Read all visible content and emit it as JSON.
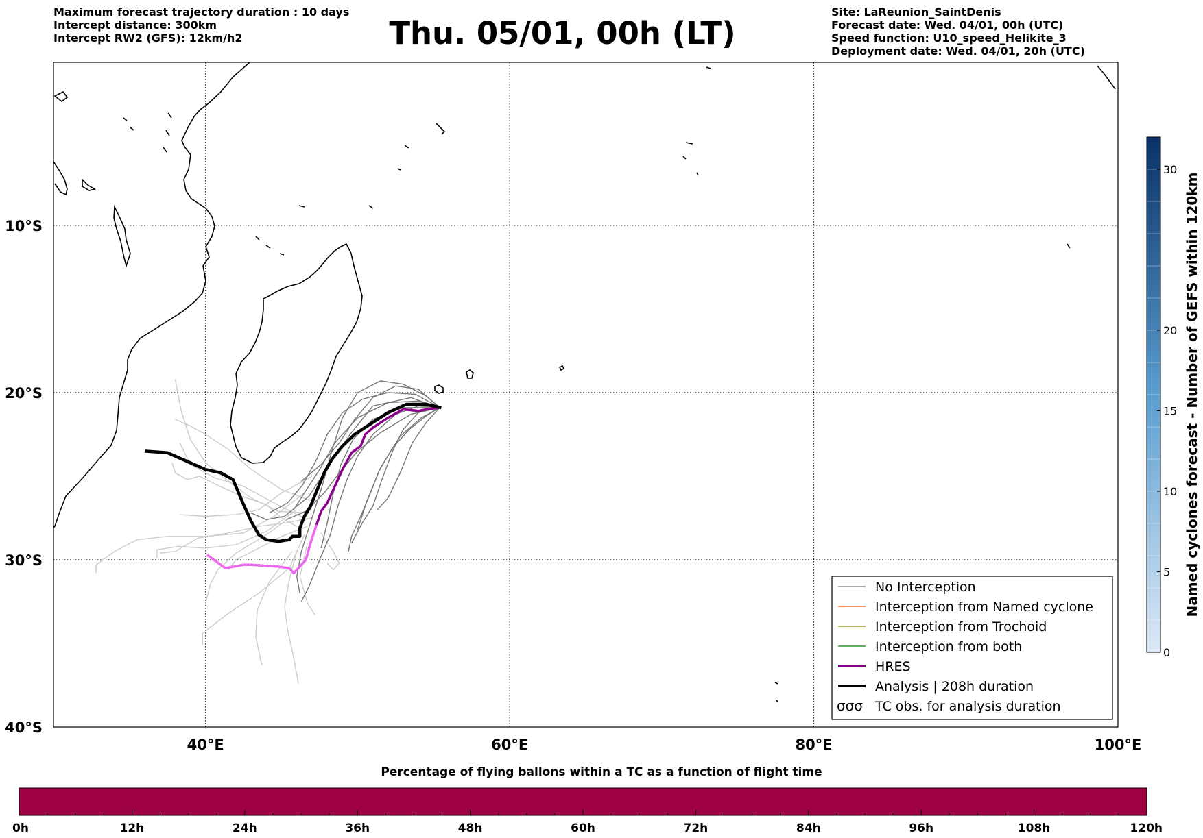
{
  "header": {
    "left": [
      "Maximum forecast trajectory duration : 10 days",
      "Intercept distance: 300km",
      "Intercept RW2 (GFS):  12km/h2"
    ],
    "title": "Thu. 05/01, 00h (LT)",
    "right": [
      "Site: LaReunion_SaintDenis",
      "Forecast date: Wed. 04/01, 00h (UTC)",
      "Speed function: U10_speed_Helikite_3",
      "Deployment date: Wed. 04/01, 20h (UTC)"
    ]
  },
  "map": {
    "lon_range": [
      30,
      100
    ],
    "lat_range": [
      -40,
      -0.25
    ],
    "lat_gridlines": [
      -10,
      -20,
      -30
    ],
    "lon_gridlines": [
      40,
      60,
      80
    ],
    "lat_labels": [
      {
        "value": -10,
        "text": "10°S"
      },
      {
        "value": -20,
        "text": "20°S"
      },
      {
        "value": -30,
        "text": "30°S"
      },
      {
        "value": -40,
        "text": "40°S"
      }
    ],
    "lon_labels": [
      {
        "value": 40,
        "text": "40°E"
      },
      {
        "value": 60,
        "text": "60°E"
      },
      {
        "value": 80,
        "text": "80°E"
      },
      {
        "value": 100,
        "text": "100°E"
      }
    ],
    "colors": {
      "no_interception": "#777777",
      "faint_members": "#cccccc",
      "named_cyclone": "#ff5500",
      "trochoid": "#808000",
      "both": "#008000",
      "hres": "#8b008b",
      "hres_light": "#ee66ee",
      "analysis": "#000000"
    }
  },
  "trajectories": {
    "analysis": [
      [
        55.5,
        -20.9
      ],
      [
        54.5,
        -20.7
      ],
      [
        53.2,
        -20.7
      ],
      [
        52,
        -21.2
      ],
      [
        50.8,
        -21.9
      ],
      [
        49.8,
        -22.5
      ],
      [
        49,
        -23.2
      ],
      [
        48.3,
        -24
      ],
      [
        47.8,
        -24.8
      ],
      [
        47.3,
        -25.9
      ],
      [
        46.9,
        -26.8
      ],
      [
        46.5,
        -27.4
      ],
      [
        46.2,
        -28.1
      ],
      [
        46.2,
        -28.6
      ],
      [
        45.7,
        -28.6
      ],
      [
        45.5,
        -28.8
      ],
      [
        44.8,
        -28.9
      ],
      [
        44,
        -28.8
      ],
      [
        43.5,
        -28.5
      ],
      [
        43,
        -27.7
      ],
      [
        42.5,
        -26.7
      ],
      [
        41.8,
        -25.2
      ],
      [
        41,
        -24.8
      ],
      [
        40,
        -24.6
      ],
      [
        38.5,
        -24
      ],
      [
        37.5,
        -23.6
      ],
      [
        36,
        -23.5
      ]
    ],
    "hres_dark": [
      [
        55.4,
        -20.9
      ],
      [
        54.5,
        -21.0
      ],
      [
        54,
        -21.1
      ],
      [
        53,
        -21
      ],
      [
        52,
        -21.5
      ],
      [
        51,
        -22.1
      ],
      [
        50.5,
        -22.5
      ],
      [
        50.2,
        -23.2
      ],
      [
        49.6,
        -23.6
      ],
      [
        49,
        -24.6
      ],
      [
        48.4,
        -25.8
      ],
      [
        48,
        -26.6
      ],
      [
        47.6,
        -27.1
      ],
      [
        47.3,
        -27.9
      ]
    ],
    "hres_light": [
      [
        47.3,
        -27.9
      ],
      [
        46.9,
        -29.0
      ],
      [
        46.6,
        -30.0
      ],
      [
        46.2,
        -30.4
      ],
      [
        45.8,
        -30.8
      ],
      [
        45.5,
        -30.5
      ],
      [
        44.7,
        -30.4
      ],
      [
        43,
        -30.3
      ],
      [
        42.5,
        -30.3
      ],
      [
        41.3,
        -30.5
      ],
      [
        40.7,
        -30.1
      ],
      [
        40.1,
        -29.7
      ]
    ],
    "members_dark": [
      [
        [
          55.4,
          -20.9
        ],
        [
          54,
          -20.5
        ],
        [
          52,
          -20.6
        ],
        [
          50,
          -21.5
        ],
        [
          48.5,
          -23
        ],
        [
          47.5,
          -24.6
        ],
        [
          46.5,
          -26
        ],
        [
          45.8,
          -27
        ]
      ],
      [
        [
          55.4,
          -20.9
        ],
        [
          53.5,
          -20.3
        ],
        [
          51,
          -20.8
        ],
        [
          49.5,
          -22.5
        ],
        [
          48,
          -24.5
        ],
        [
          46.8,
          -26.2
        ],
        [
          45.2,
          -27.4
        ],
        [
          44,
          -27.6
        ],
        [
          43,
          -27.2
        ]
      ],
      [
        [
          55.4,
          -20.9
        ],
        [
          54,
          -20.8
        ],
        [
          52.5,
          -21.3
        ],
        [
          51,
          -22.5
        ],
        [
          50,
          -23.8
        ],
        [
          49.3,
          -25.2
        ],
        [
          48.7,
          -26.8
        ],
        [
          48.2,
          -28.5
        ],
        [
          47.5,
          -30
        ],
        [
          46.8,
          -31.6
        ],
        [
          46.3,
          -32.5
        ]
      ],
      [
        [
          55.4,
          -20.9
        ],
        [
          54,
          -21.2
        ],
        [
          53,
          -22.2
        ],
        [
          52.3,
          -23.5
        ],
        [
          51.6,
          -25.2
        ],
        [
          51,
          -26.8
        ],
        [
          50.3,
          -27.8
        ],
        [
          49.6,
          -29
        ]
      ],
      [
        [
          55.4,
          -20.9
        ],
        [
          53.8,
          -20.1
        ],
        [
          52,
          -20
        ],
        [
          50.3,
          -20.4
        ],
        [
          49,
          -21.2
        ],
        [
          48,
          -22.5
        ],
        [
          47.3,
          -24
        ],
        [
          46.4,
          -25.5
        ],
        [
          45.4,
          -26.6
        ],
        [
          44.2,
          -27.2
        ]
      ],
      [
        [
          55.4,
          -20.9
        ],
        [
          54.2,
          -21.5
        ],
        [
          52.8,
          -22.6
        ],
        [
          51.5,
          -24.5
        ],
        [
          50.6,
          -26.5
        ],
        [
          50,
          -28.2
        ]
      ],
      [
        [
          55.4,
          -20.9
        ],
        [
          53.5,
          -21.3
        ],
        [
          51.5,
          -22.4
        ],
        [
          50,
          -23.5
        ],
        [
          48.8,
          -24.8
        ],
        [
          47.8,
          -26
        ],
        [
          46.6,
          -27.1
        ],
        [
          45.3,
          -27.6
        ]
      ],
      [
        [
          55.4,
          -20.9
        ],
        [
          54.5,
          -20.2
        ],
        [
          53,
          -19.5
        ],
        [
          51.5,
          -19.3
        ],
        [
          50,
          -20
        ],
        [
          49,
          -21.5
        ],
        [
          48.3,
          -23.5
        ],
        [
          47.7,
          -25.5
        ],
        [
          47,
          -27.5
        ],
        [
          46.3,
          -29.5
        ],
        [
          46,
          -31
        ],
        [
          46.2,
          -32
        ]
      ],
      [
        [
          55.4,
          -20.9
        ],
        [
          54.5,
          -21.8
        ],
        [
          53.6,
          -23
        ],
        [
          52.8,
          -24.8
        ],
        [
          52,
          -26.3
        ],
        [
          51.3,
          -27
        ]
      ],
      [
        [
          55.4,
          -20.9
        ],
        [
          53,
          -20.9
        ],
        [
          51,
          -21.6
        ],
        [
          49.7,
          -22.8
        ],
        [
          48.9,
          -24.3
        ],
        [
          48.4,
          -26
        ],
        [
          48,
          -27.8
        ],
        [
          47.6,
          -29.3
        ]
      ],
      [
        [
          55.4,
          -20.9
        ],
        [
          54,
          -19.8
        ],
        [
          52.5,
          -19.6
        ],
        [
          51,
          -20.3
        ],
        [
          49.8,
          -21.6
        ],
        [
          48.8,
          -23
        ],
        [
          47.6,
          -24.3
        ],
        [
          46.3,
          -25.3
        ]
      ],
      [
        [
          55.4,
          -20.9
        ],
        [
          54.5,
          -21.4
        ],
        [
          53.4,
          -22.2
        ],
        [
          52.3,
          -23.3
        ],
        [
          51.4,
          -24.7
        ],
        [
          50.8,
          -26.1
        ],
        [
          50.2,
          -27.4
        ],
        [
          49.6,
          -28.6
        ],
        [
          49.4,
          -29.5
        ]
      ]
    ],
    "members_faint": [
      [
        [
          47,
          -25
        ],
        [
          45,
          -26
        ],
        [
          43.5,
          -27
        ],
        [
          42,
          -27.3
        ],
        [
          40,
          -27.4
        ],
        [
          38.3,
          -27.3
        ]
      ],
      [
        [
          46.5,
          -26
        ],
        [
          44.5,
          -27.4
        ],
        [
          42.5,
          -28.4
        ],
        [
          40,
          -28.6
        ],
        [
          37.5,
          -28.6
        ],
        [
          35.5,
          -28.8
        ],
        [
          34,
          -29.5
        ],
        [
          32.8,
          -30.3
        ],
        [
          32.8,
          -30.8
        ]
      ],
      [
        [
          46,
          -27
        ],
        [
          44,
          -28.3
        ],
        [
          42,
          -29.1
        ],
        [
          40,
          -29.3
        ],
        [
          38.2,
          -29.2
        ],
        [
          36.8,
          -29.4
        ],
        [
          36.8,
          -29.9
        ]
      ],
      [
        [
          45.5,
          -27.5
        ],
        [
          44,
          -28.5
        ],
        [
          42,
          -29.6
        ],
        [
          40.8,
          -30.6
        ],
        [
          40.3,
          -31.5
        ],
        [
          40,
          -32.6
        ]
      ],
      [
        [
          46.5,
          -28.5
        ],
        [
          45.5,
          -30.5
        ],
        [
          43.5,
          -32
        ],
        [
          41.5,
          -33.2
        ],
        [
          39.8,
          -34.4
        ],
        [
          39.8,
          -35.1
        ]
      ],
      [
        [
          46.7,
          -29
        ],
        [
          46.2,
          -31
        ],
        [
          46.7,
          -32.6
        ],
        [
          47.2,
          -33.3
        ]
      ],
      [
        [
          46,
          -29.5
        ],
        [
          45.5,
          -31.2
        ],
        [
          45.2,
          -32.8
        ],
        [
          45.4,
          -34.2
        ],
        [
          45.8,
          -35.9
        ],
        [
          46.1,
          -37.4
        ]
      ],
      [
        [
          45.7,
          -29.5
        ],
        [
          44.2,
          -31.3
        ],
        [
          43.4,
          -33
        ],
        [
          43.3,
          -34.6
        ],
        [
          43.7,
          -36.3
        ]
      ],
      [
        [
          46.5,
          -27.5
        ],
        [
          44.5,
          -26.6
        ],
        [
          42.5,
          -25.6
        ],
        [
          40.6,
          -25.1
        ],
        [
          39,
          -24.3
        ],
        [
          38.3,
          -23
        ]
      ],
      [
        [
          47,
          -26.5
        ],
        [
          45,
          -25.8
        ],
        [
          43,
          -24.6
        ],
        [
          41.5,
          -23.4
        ],
        [
          40,
          -22.5
        ],
        [
          39,
          -22
        ],
        [
          38,
          -21.6
        ]
      ],
      [
        [
          46.8,
          -27.2
        ],
        [
          44.8,
          -27.1
        ],
        [
          43,
          -26.3
        ],
        [
          41.5,
          -25.3
        ],
        [
          40,
          -24.2
        ],
        [
          39,
          -22.8
        ],
        [
          38.4,
          -21.1
        ],
        [
          38,
          -19.2
        ]
      ],
      [
        [
          47,
          -27.5
        ],
        [
          45.2,
          -27.8
        ],
        [
          43.5,
          -28
        ],
        [
          41.5,
          -28.4
        ],
        [
          39.5,
          -28.7
        ],
        [
          38,
          -29.5
        ],
        [
          37,
          -29.6
        ]
      ],
      [
        [
          46.7,
          -28
        ],
        [
          45,
          -28.6
        ],
        [
          43.3,
          -29.4
        ],
        [
          42,
          -30
        ],
        [
          41.5,
          -30.6
        ]
      ],
      [
        [
          47.6,
          -28.4
        ],
        [
          48.4,
          -29.5
        ],
        [
          48.8,
          -30.2
        ],
        [
          48.4,
          -30.6
        ],
        [
          48,
          -30.2
        ]
      ],
      [
        [
          46,
          -28
        ],
        [
          45,
          -27.5
        ],
        [
          44,
          -26.7
        ],
        [
          42.4,
          -26.2
        ],
        [
          40.7,
          -25.5
        ],
        [
          39.6,
          -25
        ],
        [
          38.8,
          -25.2
        ],
        [
          38,
          -24.8
        ],
        [
          37.8,
          -24.2
        ]
      ]
    ]
  },
  "colorbar_right": {
    "title": "Named cyclones forecast - Number of GEFS within 120km",
    "min": 0,
    "max": 32,
    "ticks": [
      0,
      5,
      10,
      15,
      20,
      30
    ],
    "color_low": "#dde9f7",
    "color_high": "#0a3167"
  },
  "legend": {
    "items": [
      {
        "label": "No Interception",
        "color": "#777777",
        "width": 1.3,
        "kind": "line"
      },
      {
        "label": "Interception from Named cyclone",
        "color": "#ff5500",
        "width": 1.3,
        "kind": "line"
      },
      {
        "label": "Interception from Trochoid",
        "color": "#808000",
        "width": 1.3,
        "kind": "line"
      },
      {
        "label": "Interception from both",
        "color": "#008000",
        "width": 1.3,
        "kind": "line"
      },
      {
        "label": "HRES",
        "color": "#8b008b",
        "width": 4,
        "kind": "line"
      },
      {
        "label": "Analysis | 208h duration",
        "color": "#000000",
        "width": 4,
        "kind": "line"
      },
      {
        "label": "TC obs. for analysis duration",
        "color": "#000000",
        "width": 1,
        "kind": "symbol"
      }
    ]
  },
  "bottom_bar": {
    "title": "Percentage of flying ballons within a TC as a function of flight time",
    "color": "#9e0142",
    "min_h": 0,
    "max_h": 120,
    "labels": [
      "0h",
      "12h",
      "24h",
      "36h",
      "48h",
      "60h",
      "72h",
      "84h",
      "96h",
      "108h",
      "120h"
    ]
  }
}
